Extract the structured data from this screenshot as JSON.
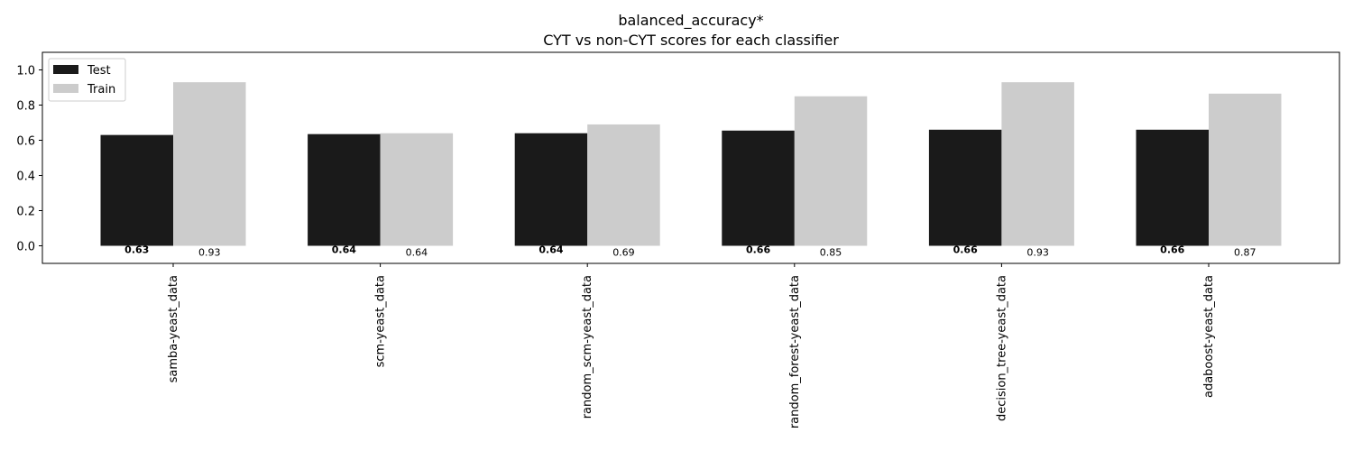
{
  "chart_data": {
    "type": "bar",
    "title": "balanced_accuracy*",
    "subtitle": "CYT vs non-CYT scores for each classifier",
    "xlabel": "",
    "ylabel": "",
    "ylim": [
      -0.1,
      1.1
    ],
    "yticks": [
      "0.0",
      "0.2",
      "0.4",
      "0.6",
      "0.8",
      "1.0"
    ],
    "grid": false,
    "legend_position": "top-left",
    "categories": [
      "samba-yeast_data",
      "scm-yeast_data",
      "random_scm-yeast_data",
      "random_forest-yeast_data",
      "decision_tree-yeast_data",
      "adaboost-yeast_data"
    ],
    "series": [
      {
        "name": "Test",
        "color": "#1a1a1a",
        "values": [
          0.63,
          0.635,
          0.64,
          0.655,
          0.66,
          0.66
        ],
        "labels": [
          "0.63",
          "0.64",
          "0.64",
          "0.66",
          "0.66",
          "0.66"
        ]
      },
      {
        "name": "Train",
        "color": "#cccccc",
        "values": [
          0.93,
          0.64,
          0.69,
          0.85,
          0.93,
          0.865
        ],
        "labels": [
          "0.93",
          "0.64",
          "0.69",
          "0.85",
          "0.93",
          "0.87"
        ]
      }
    ]
  }
}
